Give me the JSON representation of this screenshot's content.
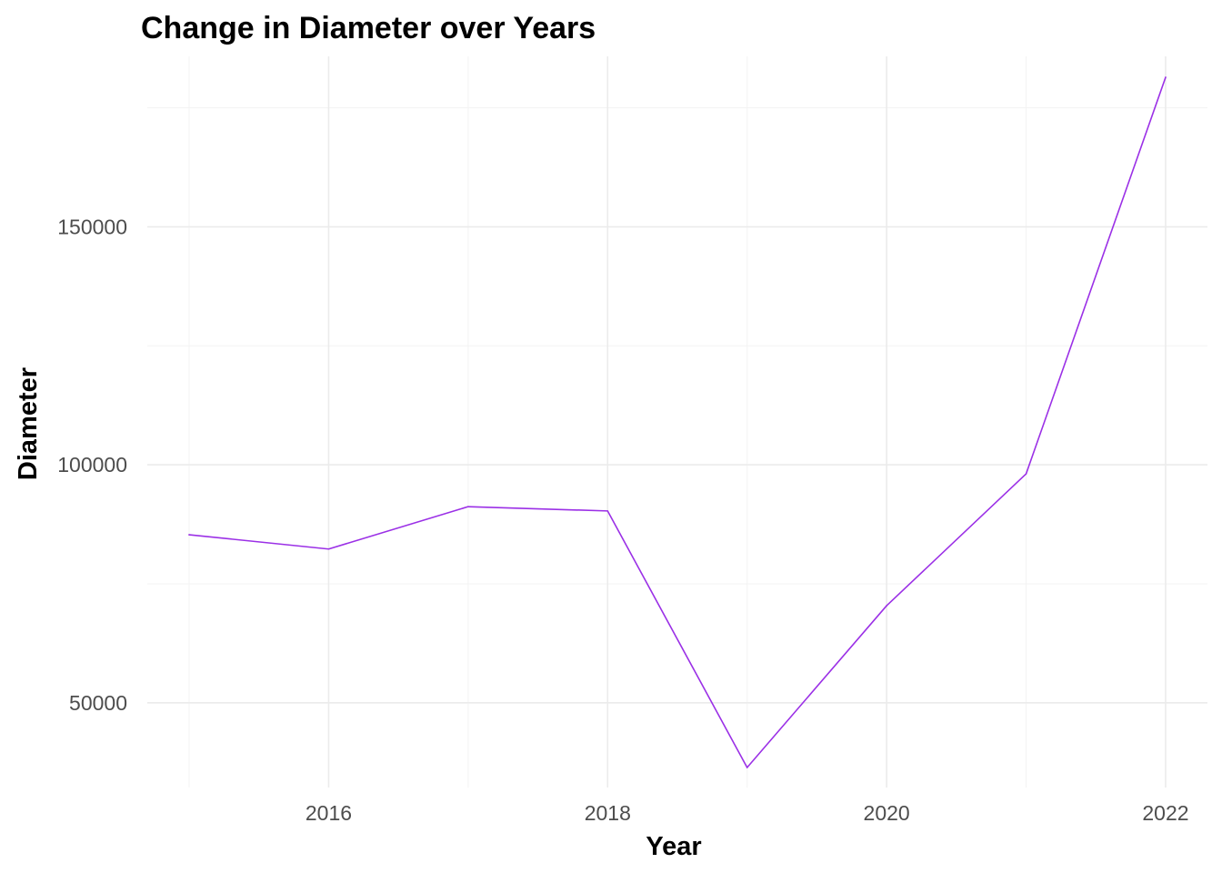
{
  "chart_data": {
    "type": "line",
    "title": "Change in Diameter over Years",
    "xlabel": "Year",
    "ylabel": "Diameter",
    "x": [
      2015,
      2016,
      2017,
      2018,
      2019,
      2020,
      2021,
      2022
    ],
    "series": [
      {
        "values": [
          85300,
          82300,
          91200,
          90300,
          36400,
          70400,
          98100,
          181400
        ],
        "color": "#9b30e6"
      }
    ],
    "xlim": [
      2014.7,
      2022.3
    ],
    "ylim": [
      32200,
      185800
    ],
    "x_ticks": [
      2016,
      2018,
      2020,
      2022
    ],
    "x_tick_labels": [
      "2016",
      "2018",
      "2020",
      "2022"
    ],
    "y_ticks": [
      50000,
      100000,
      150000
    ],
    "y_tick_labels": [
      "50000",
      "100000",
      "150000"
    ],
    "x_minor_ticks": [
      2015,
      2017,
      2019,
      2021
    ],
    "y_minor_ticks": [
      75000,
      125000,
      175000
    ],
    "grid": true,
    "legend": "none"
  }
}
